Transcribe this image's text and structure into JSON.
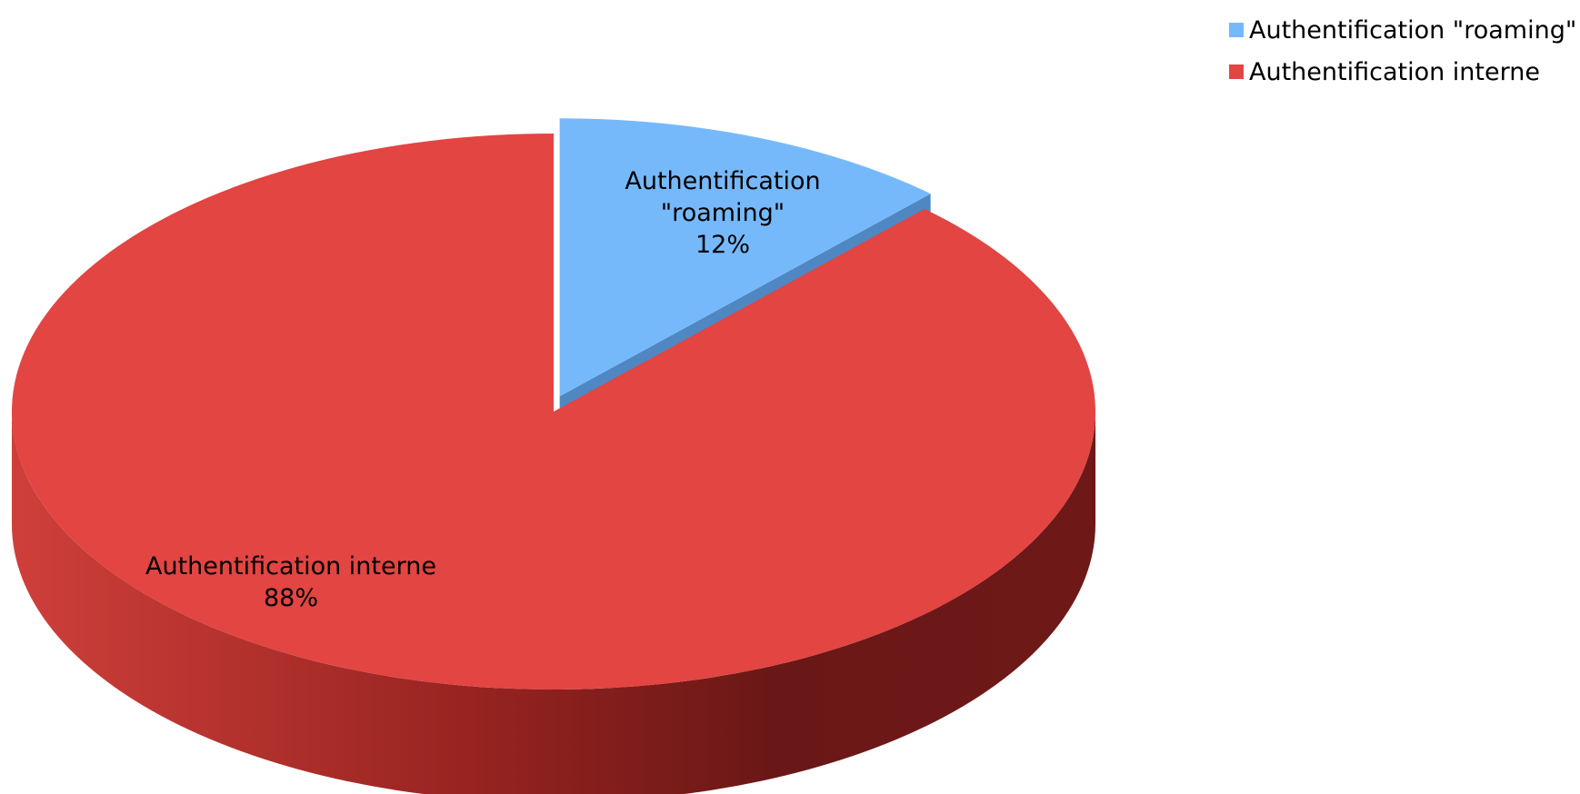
{
  "chart_data": {
    "type": "pie",
    "title": "",
    "slices": [
      {
        "label": "Authentification \"roaming\"",
        "value": 12,
        "display": "12%",
        "color": "#76b9fb",
        "exploded": true,
        "data_label_lines": [
          "Authentification",
          "\"roaming\"",
          "12%"
        ]
      },
      {
        "label": "Authentification interne",
        "value": 88,
        "display": "88%",
        "color": "#e24542",
        "exploded": false,
        "data_label_lines": [
          "Authentification interne",
          "88%"
        ]
      }
    ],
    "legend_position": "top-right",
    "style": "3d"
  }
}
